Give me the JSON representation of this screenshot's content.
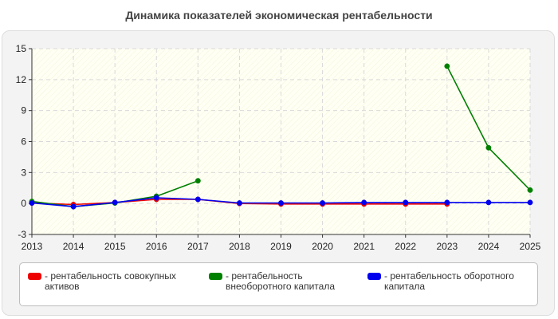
{
  "chart_data": {
    "type": "line",
    "title": "Динамика показателей экономическая рентабельности",
    "xlabel": "",
    "ylabel": "",
    "x": [
      "2013",
      "2014",
      "2015",
      "2016",
      "2017",
      "2018",
      "2019",
      "2020",
      "2021",
      "2022",
      "2023",
      "2024",
      "2025"
    ],
    "ylim": [
      -3,
      15
    ],
    "yticks": [
      "-3",
      "0",
      "3",
      "6",
      "9",
      "12",
      "15"
    ],
    "grid": true,
    "legend_position": "bottom",
    "series": [
      {
        "name": "рентабельность совокупных активов",
        "color": "#ee0000",
        "values": [
          0.05,
          -0.1,
          0.1,
          0.4,
          0.4,
          0.0,
          -0.05,
          -0.05,
          -0.05,
          -0.05,
          -0.05,
          null,
          null
        ]
      },
      {
        "name": "рентабельность внеоборотного капитала",
        "color": "#008000",
        "values": [
          0.2,
          -0.3,
          0.05,
          0.7,
          2.2,
          null,
          null,
          null,
          null,
          null,
          13.3,
          5.4,
          1.3
        ]
      },
      {
        "name": "рентабельность оборотного капитала",
        "color": "#0000ee",
        "values": [
          0.05,
          -0.3,
          0.1,
          0.55,
          0.4,
          0.05,
          0.05,
          0.05,
          0.1,
          0.1,
          0.1,
          0.1,
          0.1
        ]
      }
    ]
  },
  "legend": {
    "items": [
      {
        "label": "- рентабельность совокупных активов",
        "color": "#ee0000"
      },
      {
        "label": "- рентабельность внеоборотного капитала",
        "color": "#008000"
      },
      {
        "label": "- рентабельность оборотного капитала",
        "color": "#0000ee"
      }
    ]
  }
}
